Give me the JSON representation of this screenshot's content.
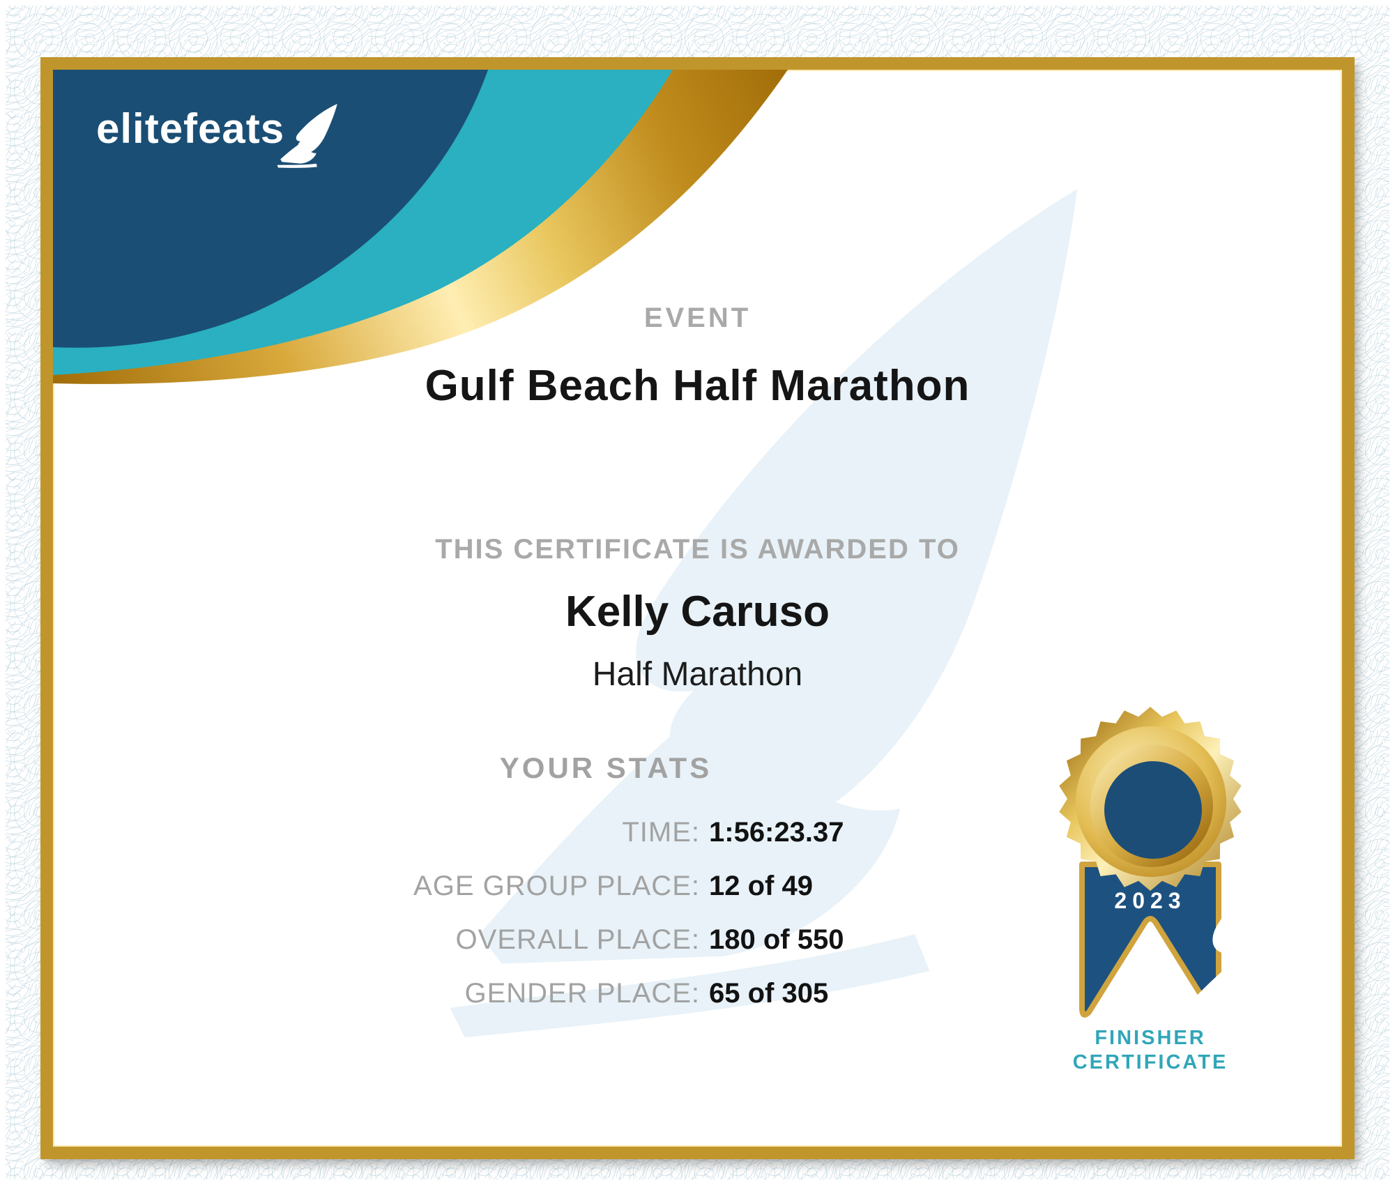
{
  "brand": {
    "logo_text": "elitefeats",
    "logo_icon": "winged-foot-icon"
  },
  "event": {
    "label": "EVENT",
    "name": "Gulf Beach Half Marathon"
  },
  "award": {
    "label": "THIS CERTIFICATE IS AWARDED TO",
    "recipient": "Kelly Caruso",
    "division": "Half Marathon"
  },
  "stats": {
    "heading": "YOUR STATS",
    "rows": [
      {
        "label": "TIME:",
        "value": "1:56:23.37"
      },
      {
        "label": "AGE GROUP PLACE:",
        "value": "12 of 49"
      },
      {
        "label": "OVERALL PLACE:",
        "value": "180 of 550"
      },
      {
        "label": "GENDER PLACE:",
        "value": "65 of 305"
      }
    ]
  },
  "badge": {
    "year": "2023",
    "caption_line1": "FINISHER",
    "caption_line2": "CERTIFICATE",
    "icon": "gold-rosette-medal-with-winged-foot"
  },
  "colors": {
    "navy": "#1b4e74",
    "teal": "#2ab0c0",
    "frame_gold": "#c0962c",
    "ribbon_navy": "#1d5180",
    "medal_navy": "#1c4d77",
    "caption_teal": "#31a6b8",
    "label_gray": "#a2a2a2",
    "text_black": "#151515",
    "watermark_blue": "#e4f0f7"
  }
}
